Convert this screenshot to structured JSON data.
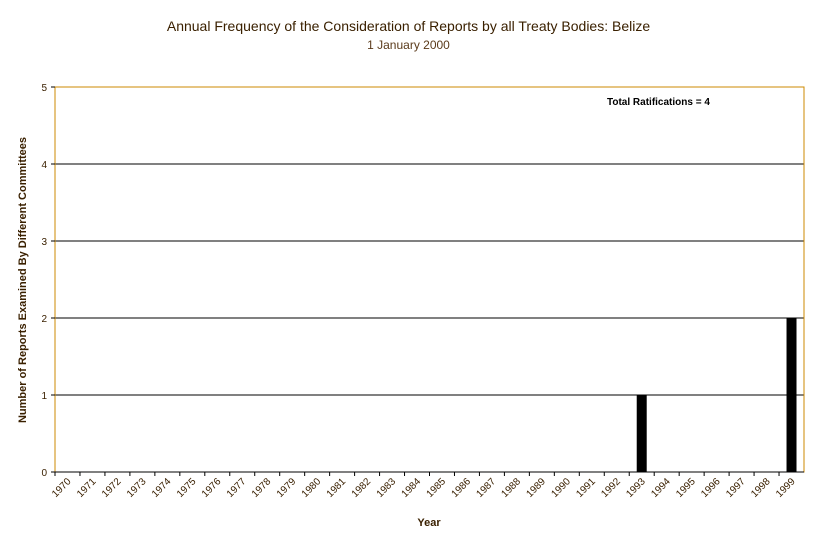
{
  "chart_data": {
    "type": "bar",
    "title": "Annual Frequency of the Consideration of Reports by all Treaty Bodies: Belize",
    "subtitle": "1 January 2000",
    "xlabel": "Year",
    "ylabel": "Number of Reports Examined By Different Committees",
    "annotation": "Total Ratifications = 4",
    "categories": [
      "1970",
      "1971",
      "1972",
      "1973",
      "1974",
      "1975",
      "1976",
      "1977",
      "1978",
      "1979",
      "1980",
      "1981",
      "1982",
      "1983",
      "1984",
      "1985",
      "1986",
      "1987",
      "1988",
      "1989",
      "1990",
      "1991",
      "1992",
      "1993",
      "1994",
      "1995",
      "1996",
      "1997",
      "1998",
      "1999"
    ],
    "values": [
      0,
      0,
      0,
      0,
      0,
      0,
      0,
      0,
      0,
      0,
      0,
      0,
      0,
      0,
      0,
      0,
      0,
      0,
      0,
      0,
      0,
      0,
      0,
      1,
      0,
      0,
      0,
      0,
      0,
      2
    ],
    "ylim": [
      0,
      5
    ],
    "yticks": [
      "0",
      "1",
      "2",
      "3",
      "4",
      "5"
    ],
    "grid": true,
    "colors": {
      "bar": "#000000",
      "grid": "#000000",
      "frame": "#cc8800",
      "text": "#3a2000"
    }
  }
}
